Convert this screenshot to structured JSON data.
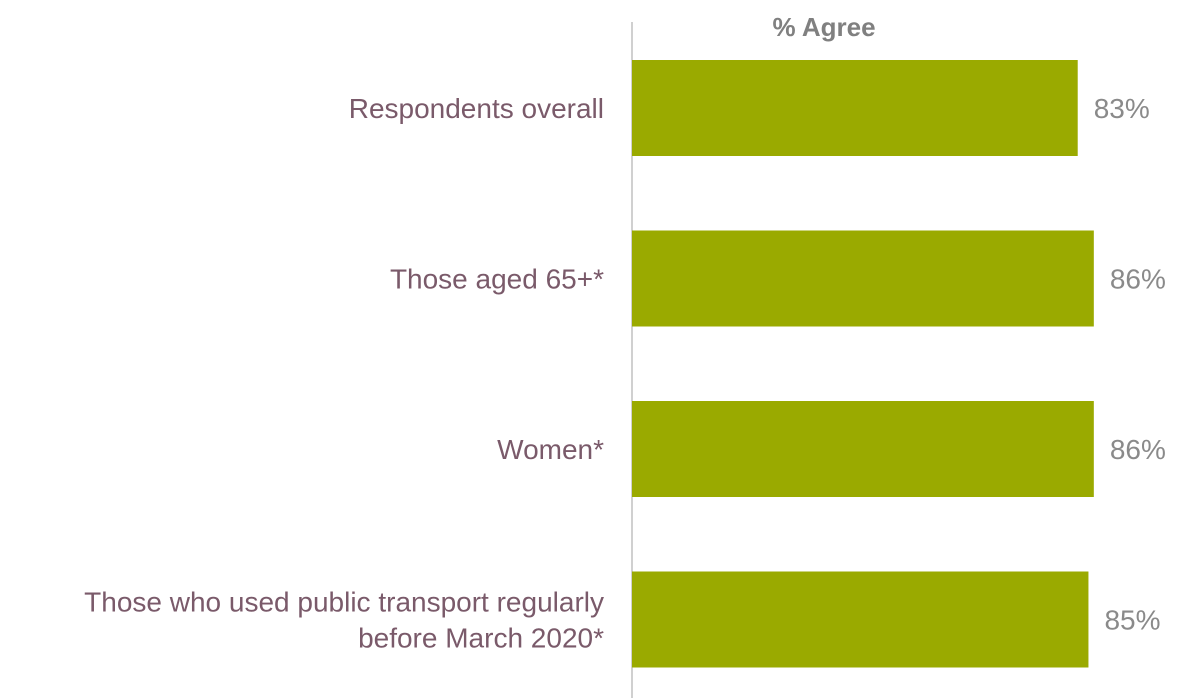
{
  "chart_data": {
    "type": "bar",
    "orientation": "horizontal",
    "title": "% Agree",
    "categories": [
      [
        "Respondents overall"
      ],
      [
        "Those aged 65+*"
      ],
      [
        "Women*"
      ],
      [
        "Those who used public transport regularly",
        "before March 2020*"
      ]
    ],
    "values": [
      83,
      86,
      86,
      85
    ],
    "data_labels": [
      "83%",
      "86%",
      "86%",
      "85%"
    ],
    "xlim": [
      0,
      100
    ],
    "bar_color": "#9aaa00",
    "axis_color": "#d0d0d0",
    "label_color": "#7a5a6a",
    "data_label_color": "#8a8a8a",
    "title_color": "#808080",
    "grid": false,
    "legend": "none"
  }
}
